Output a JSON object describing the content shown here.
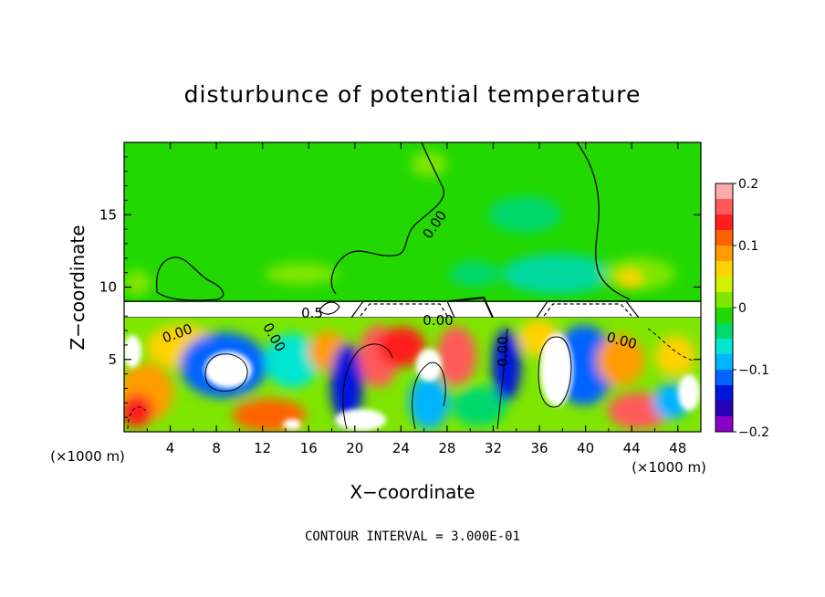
{
  "chart_data": {
    "type": "heatmap",
    "title": "disturbunce of potential temperature",
    "xlabel": "X−coordinate",
    "ylabel": "Z−coordinate",
    "x_unit_left": "(×1000 m)",
    "x_unit_right": "(×1000 m)",
    "xlim": [
      0,
      50
    ],
    "ylim": [
      0,
      20
    ],
    "x_ticks": [
      "4",
      "8",
      "12",
      "16",
      "20",
      "24",
      "28",
      "32",
      "36",
      "40",
      "44",
      "48"
    ],
    "y_ticks": [
      "5",
      "10",
      "15"
    ],
    "colorbar": {
      "range": [
        -0.2,
        0.2
      ],
      "tick_labels": [
        "0.2",
        "0.1",
        "0",
        "−0.1",
        "−0.2"
      ],
      "colors": [
        "#ffaaaa",
        "#ff5a5a",
        "#ff1e1e",
        "#ff6000",
        "#ff9c00",
        "#ffd200",
        "#d2f000",
        "#7ee600",
        "#22d800",
        "#00d86e",
        "#00e6d0",
        "#00b4ff",
        "#0064ff",
        "#0014dc",
        "#2800b4",
        "#8c00c8"
      ]
    },
    "contour_labels": [
      "0.00",
      "0.00",
      "0.00",
      "0.00",
      "0.00",
      "0.00",
      "0.5"
    ],
    "contour_interval_text": "CONTOUR INTERVAL = 3.000E-01",
    "features": {
      "upper_region_value": 0.0,
      "excluded_band_z": [
        8.2,
        9.1
      ]
    }
  }
}
